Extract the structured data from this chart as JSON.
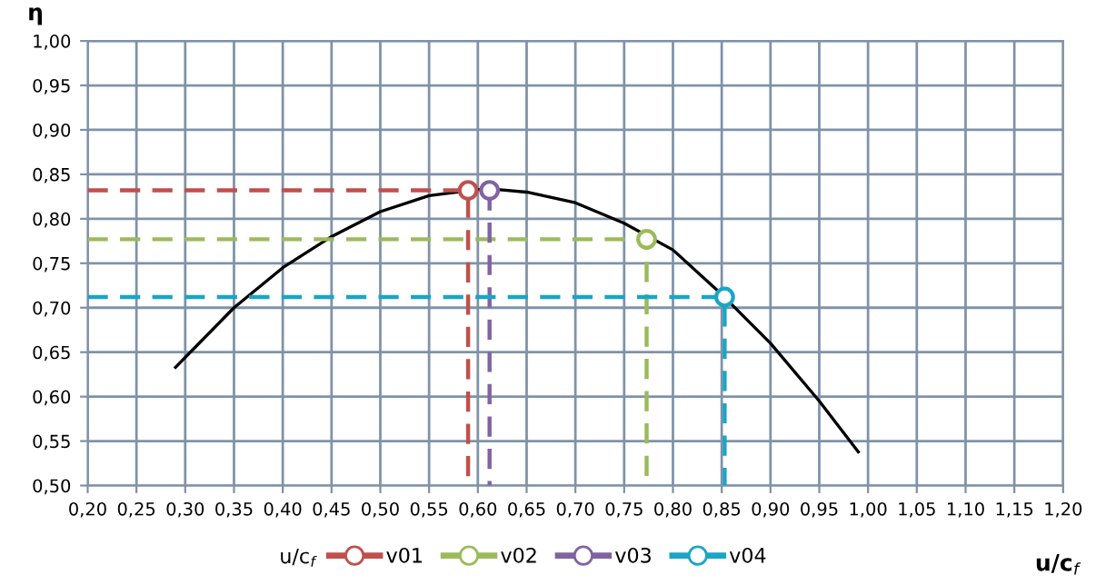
{
  "chart_data": {
    "type": "line",
    "xlabel": "u/c$_{f}$",
    "ylabel": "η",
    "legend_title": "u/c$_{f}$",
    "xlim": [
      0.2,
      1.2
    ],
    "ylim": [
      0.5,
      1.0
    ],
    "xticks": [
      {
        "value": 0.2,
        "label": "0,20"
      },
      {
        "value": 0.25,
        "label": "0,25"
      },
      {
        "value": 0.3,
        "label": "0,30"
      },
      {
        "value": 0.35,
        "label": "0,35"
      },
      {
        "value": 0.4,
        "label": "0,40"
      },
      {
        "value": 0.45,
        "label": "0,45"
      },
      {
        "value": 0.5,
        "label": "0,50"
      },
      {
        "value": 0.55,
        "label": "0,55"
      },
      {
        "value": 0.6,
        "label": "0,60"
      },
      {
        "value": 0.65,
        "label": "0,65"
      },
      {
        "value": 0.7,
        "label": "0,70"
      },
      {
        "value": 0.75,
        "label": "0,75"
      },
      {
        "value": 0.8,
        "label": "0,80"
      },
      {
        "value": 0.85,
        "label": "0,85"
      },
      {
        "value": 0.9,
        "label": "0,90"
      },
      {
        "value": 0.95,
        "label": "0,95"
      },
      {
        "value": 1.0,
        "label": "1,00"
      },
      {
        "value": 1.05,
        "label": "1,05"
      },
      {
        "value": 1.1,
        "label": "1,10"
      },
      {
        "value": 1.15,
        "label": "1,15"
      },
      {
        "value": 1.2,
        "label": "1,20"
      }
    ],
    "yticks": [
      {
        "value": 0.5,
        "label": "0,50"
      },
      {
        "value": 0.55,
        "label": "0,55"
      },
      {
        "value": 0.6,
        "label": "0,60"
      },
      {
        "value": 0.65,
        "label": "0,65"
      },
      {
        "value": 0.7,
        "label": "0,70"
      },
      {
        "value": 0.75,
        "label": "0,75"
      },
      {
        "value": 0.8,
        "label": "0,80"
      },
      {
        "value": 0.85,
        "label": "0,85"
      },
      {
        "value": 0.9,
        "label": "0,90"
      },
      {
        "value": 0.95,
        "label": "0,95"
      },
      {
        "value": 1.0,
        "label": "1,00"
      }
    ],
    "grid": true,
    "legend": "bottom",
    "series": [
      {
        "color": "#000000",
        "line_style": "solid",
        "marker": "none",
        "x": [
          0.29,
          0.35,
          0.4,
          0.45,
          0.5,
          0.55,
          0.6,
          0.62,
          0.65,
          0.7,
          0.75,
          0.8,
          0.85,
          0.9,
          0.95,
          0.99
        ],
        "values": [
          0.633,
          0.7,
          0.745,
          0.78,
          0.808,
          0.826,
          0.833,
          0.833,
          0.83,
          0.818,
          0.795,
          0.765,
          0.715,
          0.66,
          0.595,
          0.538
        ]
      },
      {
        "color": "#c0504d",
        "line_style": "dashed",
        "marker": "none",
        "x": [
          0.2,
          0.59,
          0.59
        ],
        "values": [
          0.832,
          0.832,
          0.5
        ]
      },
      {
        "color": "#9bbb59",
        "line_style": "dashed",
        "marker": "none",
        "x": [
          0.2,
          0.773,
          0.773
        ],
        "values": [
          0.777,
          0.777,
          0.5
        ]
      },
      {
        "color": "#8064a2",
        "line_style": "dashed",
        "marker": "none",
        "x": [
          0.612,
          0.612
        ],
        "values": [
          0.832,
          0.5
        ]
      },
      {
        "color": "#1ba5c5",
        "line_style": "dashed",
        "marker": "none",
        "x": [
          0.2,
          0.853,
          0.853
        ],
        "values": [
          0.712,
          0.712,
          0.5
        ]
      },
      {
        "type": "scatter",
        "name": "v01",
        "color": "#c0504d",
        "marker": "circle",
        "x": [
          0.59
        ],
        "values": [
          0.832
        ]
      },
      {
        "type": "scatter",
        "name": "v02",
        "color": "#9bbb59",
        "marker": "circle",
        "x": [
          0.773
        ],
        "values": [
          0.777
        ]
      },
      {
        "type": "scatter",
        "name": "v03",
        "color": "#8064a2",
        "marker": "circle",
        "x": [
          0.612
        ],
        "values": [
          0.832
        ]
      },
      {
        "type": "scatter",
        "name": "v04",
        "color": "#1ba5c5",
        "marker": "circle",
        "x": [
          0.853
        ],
        "values": [
          0.712
        ]
      }
    ]
  }
}
